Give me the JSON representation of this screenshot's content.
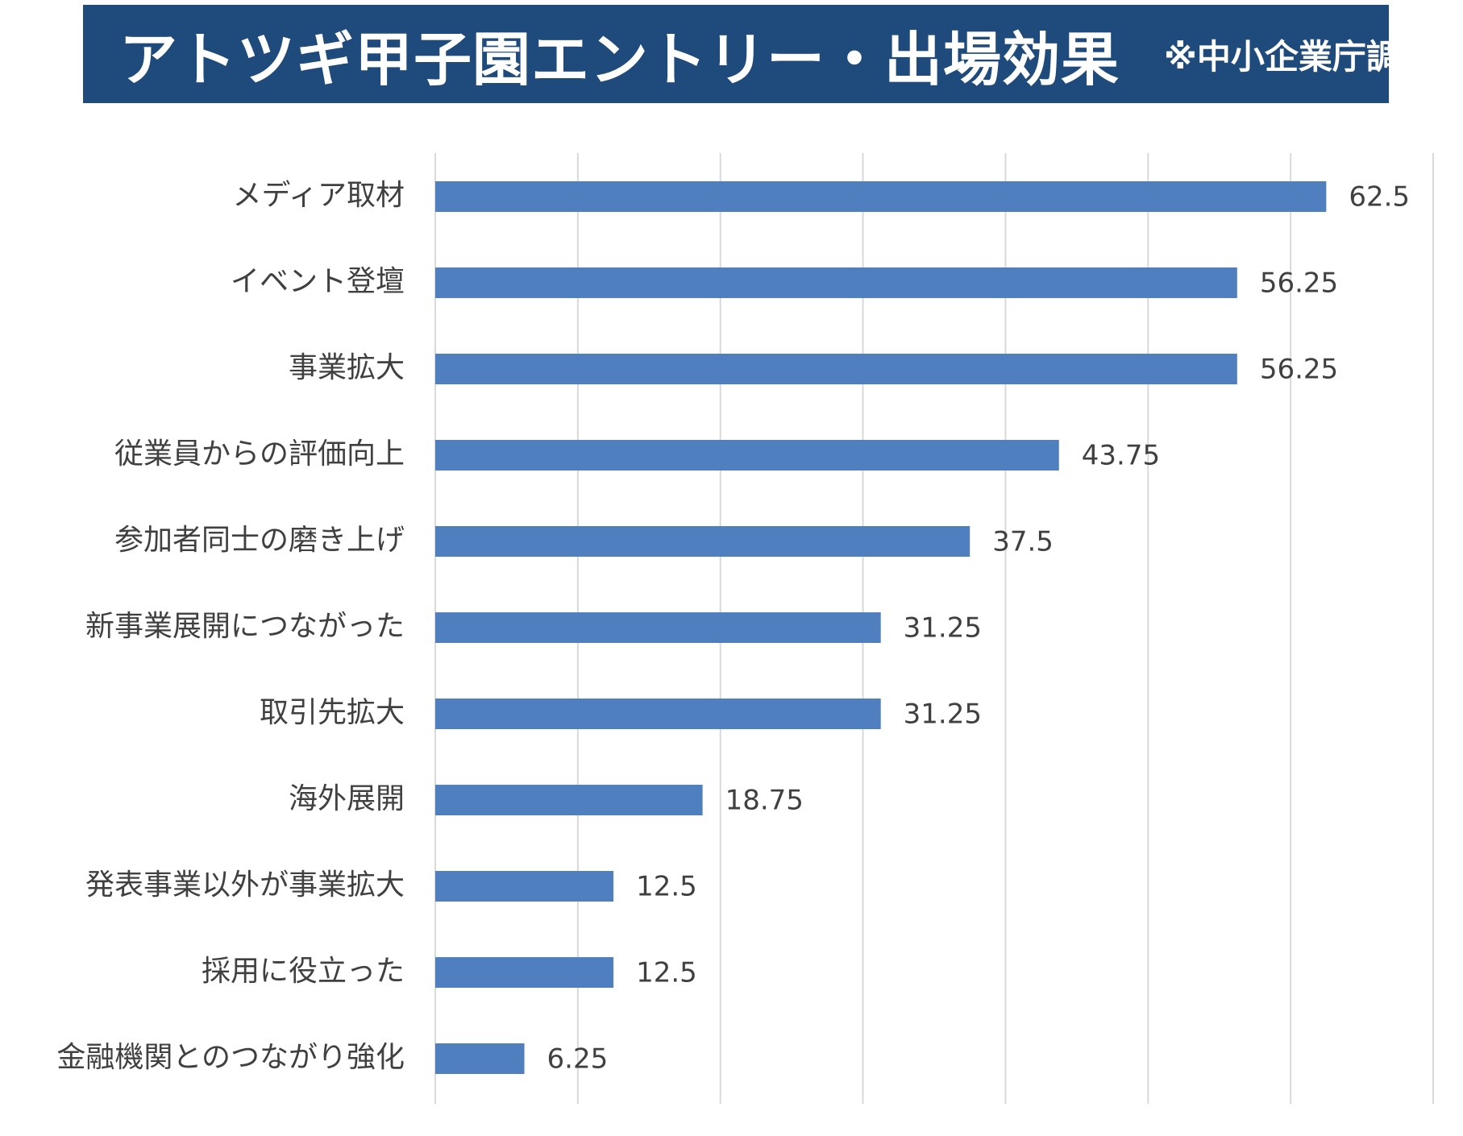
{
  "title": {
    "main": "アトツギ甲子園エントリー・出場効果",
    "note": "※中小企業庁調べ"
  },
  "colors": {
    "banner": "#1f4a7c",
    "bar": "#4f7fbe",
    "grid": "#d9d9d9",
    "text": "#404040"
  },
  "chart_data": {
    "type": "bar",
    "orientation": "horizontal",
    "title": "アトツギ甲子園エントリー・出場効果",
    "xlabel": "",
    "ylabel": "",
    "xlim": [
      0,
      70
    ],
    "grid": true,
    "categories": [
      "メディア取材",
      "イベント登壇",
      "事業拡大",
      "従業員からの評価向上",
      "参加者同士の磨き上げ",
      "新事業展開につながった",
      "取引先拡大",
      "海外展開",
      "発表事業以外が事業拡大",
      "採用に役立った",
      "金融機関とのつながり強化"
    ],
    "values": [
      62.5,
      56.25,
      56.25,
      43.75,
      37.5,
      31.25,
      31.25,
      18.75,
      12.5,
      12.5,
      6.25
    ],
    "value_labels": [
      "62.5",
      "56.25",
      "56.25",
      "43.75",
      "37.5",
      "31.25",
      "31.25",
      "18.75",
      "12.5",
      "12.5",
      "6.25"
    ]
  }
}
